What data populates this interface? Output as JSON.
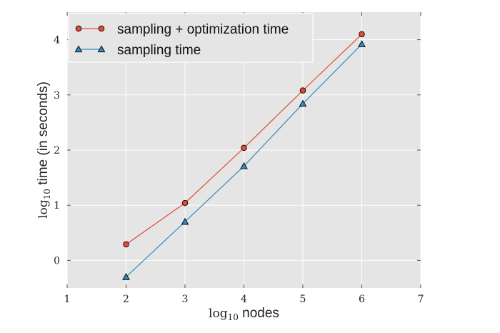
{
  "chart_data": {
    "type": "line",
    "title": "",
    "xlabel": {
      "prefix": "log",
      "subscript": "10",
      "text": " nodes"
    },
    "ylabel": {
      "prefix": "log",
      "subscript": "10",
      "text": " time (in seconds)"
    },
    "xlim": [
      1,
      7
    ],
    "ylim": [
      -0.5,
      4.5
    ],
    "xticks": [
      1,
      2,
      3,
      4,
      5,
      6,
      7
    ],
    "yticks": [
      0,
      1,
      2,
      3,
      4
    ],
    "grid": true,
    "background": "#e5e5e5",
    "legend_position": "top-left",
    "x": [
      2,
      3,
      4,
      5,
      6
    ],
    "series": [
      {
        "name": "sampling + optimization time",
        "values": [
          0.29,
          1.04,
          2.04,
          3.08,
          4.1
        ],
        "color": "#e24a33",
        "marker": "circle"
      },
      {
        "name": "sampling time",
        "values": [
          -0.3,
          0.7,
          1.71,
          2.84,
          3.92
        ],
        "color": "#348abd",
        "marker": "triangle"
      }
    ]
  }
}
